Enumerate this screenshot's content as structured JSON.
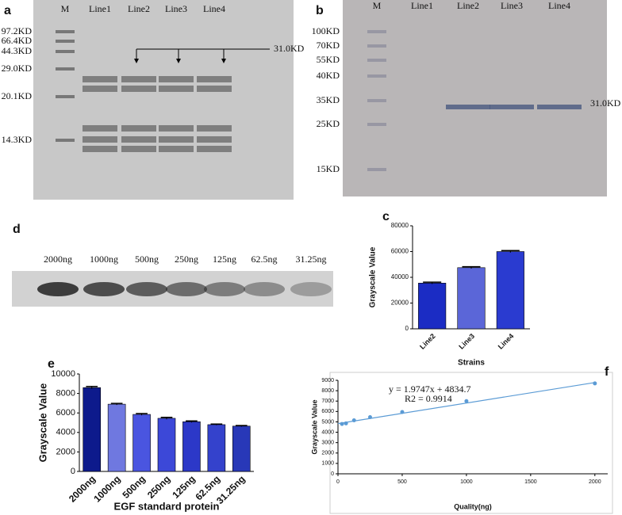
{
  "panels": {
    "a": {
      "letter": "a",
      "lanes": [
        "M",
        "Line1",
        "Line2",
        "Line3",
        "Line4"
      ],
      "markers": [
        "97.2KD",
        "66.4KD",
        "44.3KD",
        "29.0KD",
        "20.1KD",
        "14.3KD"
      ],
      "annotation": "31.0KD"
    },
    "b": {
      "letter": "b",
      "lanes": [
        "M",
        "Line1",
        "Line2",
        "Line3",
        "Line4"
      ],
      "markers": [
        "100KD",
        "70KD",
        "55KD",
        "40KD",
        "35KD",
        "25KD",
        "15KD"
      ],
      "annotation": "31.0KD"
    },
    "d": {
      "letter": "d",
      "lanes": [
        "2000ng",
        "1000ng",
        "500ng",
        "250ng",
        "125ng",
        "62.5ng",
        "31.25ng"
      ]
    }
  },
  "chart_data": [
    {
      "type": "bar",
      "letter": "c",
      "x_label": "Strains",
      "y_label": "Grayscale Value",
      "categories": [
        "Line2",
        "Line3",
        "Line4"
      ],
      "values": [
        35500,
        47500,
        60000
      ],
      "errors": [
        700,
        700,
        800
      ],
      "colors": [
        "#1b2cc4",
        "#5b66d8",
        "#2a3bd0"
      ],
      "ylim": [
        0,
        80000
      ],
      "yticks": [
        0,
        20000,
        40000,
        60000,
        80000
      ]
    },
    {
      "type": "bar",
      "letter": "e",
      "x_label": "EGF standard protein",
      "y_label": "Grayscale Value",
      "categories": [
        "2000ng",
        "1000ng",
        "500ng",
        "250ng",
        "125ng",
        "62.5ng",
        "31.25ng"
      ],
      "values": [
        8600,
        6900,
        5850,
        5450,
        5100,
        4800,
        4650
      ],
      "errors": [
        120,
        80,
        90,
        100,
        80,
        60,
        60
      ],
      "colors": [
        "#0d1a8c",
        "#6f78e0",
        "#4a55e0",
        "#3c48d8",
        "#2c38c8",
        "#3442cc",
        "#2838b8"
      ],
      "ylim": [
        0,
        10000
      ],
      "yticks": [
        0,
        2000,
        4000,
        6000,
        8000,
        10000
      ]
    },
    {
      "type": "scatter",
      "letter": "f",
      "x_label": "Quality(ng)",
      "y_label": "Grayscale Value",
      "x": [
        31.25,
        62.5,
        125,
        250,
        500,
        1000,
        2000
      ],
      "values": [
        4800,
        4850,
        5150,
        5450,
        5950,
        7000,
        8700
      ],
      "color": "#5b9bd5",
      "trendline": {
        "slope": 1.9747,
        "intercept": 4834.7
      },
      "annotations": [
        "y = 1.9747x + 4834.7",
        "R2 = 0.9914"
      ],
      "xlim": [
        0,
        2100
      ],
      "xticks": [
        0,
        500,
        1000,
        1500,
        2000
      ],
      "ylim": [
        0,
        9000
      ],
      "yticks": [
        0,
        1000,
        2000,
        3000,
        4000,
        5000,
        6000,
        7000,
        8000,
        9000
      ]
    }
  ]
}
